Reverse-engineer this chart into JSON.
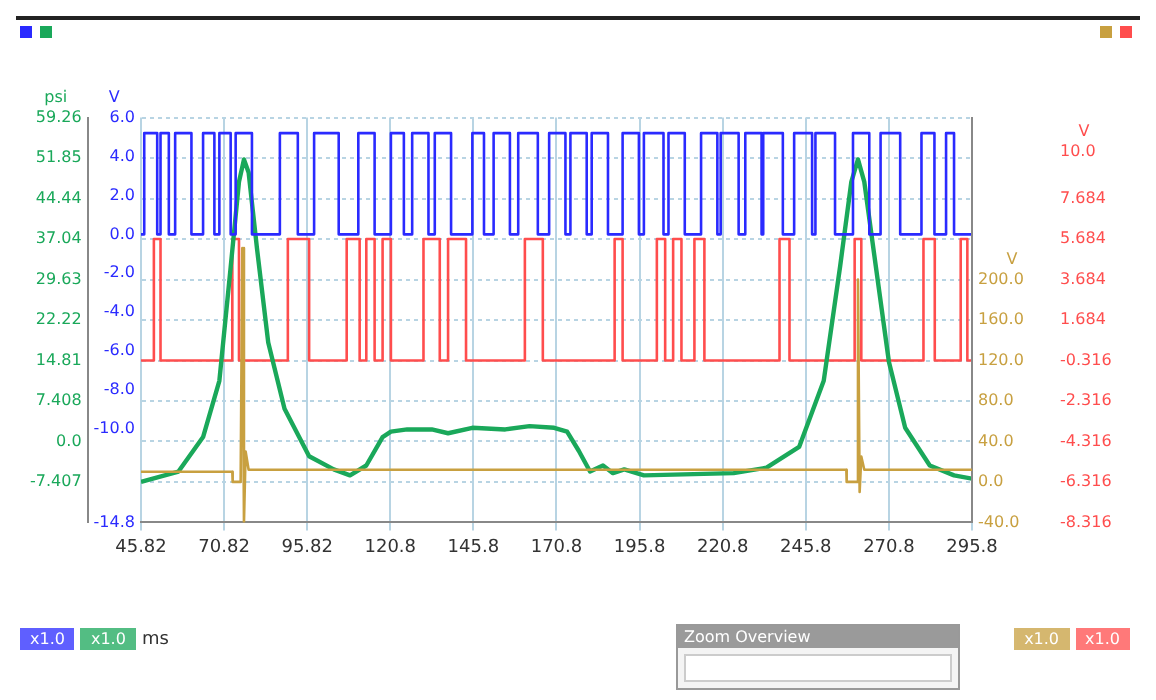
{
  "chart_data": [
    {
      "type": "line",
      "xlabel": "ms",
      "ylabel": "V",
      "y2label": "psi",
      "y3label": "V",
      "xlim": [
        45.82,
        295.8
      ],
      "xticks": [
        45.82,
        70.82,
        95.82,
        120.8,
        145.8,
        170.8,
        195.8,
        220.8,
        245.8,
        270.8,
        295.8
      ],
      "ylim": [
        -14.8,
        6.0
      ],
      "yticks": [
        {
          "value": 6,
          "label": "6.0"
        },
        {
          "value": 4,
          "label": "4.0"
        },
        {
          "value": 2,
          "label": "2.0"
        },
        {
          "value": 0,
          "label": "0.0"
        },
        {
          "value": -2,
          "label": "-2.0"
        },
        {
          "value": -4,
          "label": "-4.0"
        },
        {
          "value": -6,
          "label": "-6.0"
        },
        {
          "value": -8,
          "label": "-8.0"
        },
        {
          "value": -10,
          "label": "-10.0"
        },
        -14.8
      ],
      "y2lim": [
        -14.81,
        59.26
      ],
      "y2ticks": [
        59.26,
        51.85,
        44.44,
        37.04,
        29.63,
        22.22,
        14.81,
        7.408,
        {
          "value": 0,
          "label": "0.0"
        },
        -7.407
      ],
      "y3lim": [
        -8.316,
        11.684
      ],
      "y3ticks": [
        {
          "value": 10,
          "label": "10.0"
        },
        7.684,
        5.684,
        3.684,
        1.684,
        -0.316,
        -2.316,
        -4.316,
        -6.316,
        -8.316
      ],
      "grid": true,
      "annotations": [
        "x1.0",
        "x1.0",
        "x1.0",
        "x1.0",
        "Zoom Overview"
      ],
      "series": [
        {
          "type": "step",
          "color": "#2a2aff",
          "x": [
            45.82,
            46.8,
            50.7,
            51.7,
            54.2,
            56.1,
            61.0,
            64.5,
            67.9,
            69.4,
            72.8,
            74.3,
            79.2,
            87.6,
            93.0,
            97.9,
            105.3,
            111.2,
            116.1,
            121.0,
            124.9,
            127.4,
            132.3,
            134.2,
            139.1,
            145.5,
            149.0,
            151.9,
            156.8,
            159.3,
            165.2,
            168.6,
            173.5,
            175.0,
            179.9,
            181.4,
            186.3,
            190.7,
            195.6,
            197.1,
            203.0,
            204.5,
            209.4,
            214.3,
            219.2,
            220.2,
            225.6,
            227.6,
            232.5,
            233.0,
            238.9,
            242.3,
            247.7,
            248.7,
            254.6,
            260.0,
            264.9,
            268.3,
            274.2,
            280.6,
            284.5,
            288.0,
            290.4,
            295.8
          ],
          "values": [
            0,
            5.2,
            0,
            5.2,
            0,
            5.2,
            0,
            5.2,
            0,
            5.2,
            0,
            5.2,
            0,
            5.2,
            0,
            5.2,
            0,
            5.2,
            0,
            5.2,
            0,
            5.2,
            0,
            5.2,
            0,
            5.2,
            0,
            5.2,
            0,
            5.2,
            0,
            5.2,
            0,
            5.2,
            0,
            5.2,
            0,
            5.2,
            0,
            5.2,
            0,
            5.2,
            0,
            5.2,
            0,
            5.2,
            0,
            5.2,
            0,
            5.2,
            0,
            5.2,
            0,
            5.2,
            0,
            5.2,
            0,
            5.2,
            0,
            5.2,
            0,
            5.2,
            0,
            0
          ]
        },
        {
          "type": "line",
          "axis": "y2",
          "color": "#1aa85a",
          "x": [
            45.82,
            57.1,
            64.5,
            69.4,
            72.8,
            75.3,
            76.8,
            78.2,
            80.7,
            84.1,
            89.0,
            96.4,
            103.8,
            108.7,
            113.6,
            118.5,
            121.0,
            125.9,
            133.3,
            138.2,
            145.5,
            155.4,
            162.7,
            170.1,
            174.0,
            177.5,
            180.9,
            184.8,
            187.8,
            191.2,
            197.1,
            224.1,
            234.0,
            243.8,
            251.2,
            256.1,
            259.5,
            261.5,
            263.4,
            266.9,
            270.8,
            275.7,
            283.1,
            290.4,
            295.8
          ],
          "values": [
            -7.4,
            -5.5,
            0.8,
            11.1,
            31.9,
            47.5,
            51.6,
            49.2,
            35.4,
            18.1,
            6.0,
            -2.7,
            -5.1,
            -6.2,
            -4.4,
            0.8,
            1.8,
            2.2,
            2.2,
            1.5,
            2.5,
            2.2,
            2.8,
            2.5,
            1.8,
            -1.7,
            -5.5,
            -4.4,
            -5.8,
            -5.1,
            -6.2,
            -5.8,
            -4.8,
            -1.0,
            11.1,
            31.9,
            47.5,
            51.6,
            47.5,
            31.9,
            14.6,
            2.5,
            -4.4,
            -6.2,
            -6.8
          ]
        },
        {
          "type": "step",
          "axis": "y3",
          "color": "#ff4d4d",
          "x": [
            45.82,
            49.7,
            51.7,
            73.3,
            75.3,
            90.0,
            96.4,
            107.7,
            111.6,
            113.6,
            116.1,
            118.5,
            121.0,
            130.8,
            135.7,
            138.2,
            143.6,
            161.3,
            166.7,
            188.3,
            190.7,
            201.0,
            203.5,
            205.9,
            208.4,
            212.3,
            215.3,
            237.9,
            240.9,
            260.5,
            262.5,
            281.2,
            284.6,
            292.4,
            294.4,
            295.8
          ],
          "values": [
            -0.316,
            5.684,
            -0.316,
            5.684,
            -0.316,
            5.684,
            -0.316,
            5.684,
            -0.316,
            5.684,
            -0.316,
            5.684,
            -0.316,
            5.684,
            -0.316,
            5.684,
            -0.316,
            5.684,
            -0.316,
            5.684,
            -0.316,
            5.684,
            -0.316,
            5.684,
            -0.316,
            5.684,
            -0.316,
            5.684,
            -0.316,
            5.684,
            -0.316,
            5.684,
            -0.316,
            5.684,
            -0.316,
            -0.316
          ]
        }
      ]
    },
    {
      "type": "line",
      "ylabel": "V",
      "tick_labels": "y",
      "xlim": [
        45.82,
        295.8
      ],
      "ylim": [
        -40,
        360
      ],
      "yticks": [
        {
          "value": 200,
          "label": "200.0"
        },
        {
          "value": 160,
          "label": "160.0"
        },
        {
          "value": 120,
          "label": "120.0"
        },
        {
          "value": 80,
          "label": "80.0"
        },
        {
          "value": 40,
          "label": "40.0"
        },
        {
          "value": 0,
          "label": "0.0"
        },
        {
          "value": -40,
          "label": "-40.0"
        }
      ],
      "series": [
        {
          "type": "line",
          "color": "#c8a040",
          "x": [
            45.82,
            73.3,
            73.4,
            75.8,
            76.3,
            76.8,
            77.3,
            78.2,
            258.0,
            258.1,
            261.0,
            261.5,
            262.0,
            262.5,
            263.4,
            295.8
          ],
          "values": [
            10,
            10,
            0,
            0,
            231,
            -40,
            30,
            12,
            12,
            0,
            0,
            200,
            -10,
            25,
            12,
            12
          ]
        }
      ]
    }
  ]
}
